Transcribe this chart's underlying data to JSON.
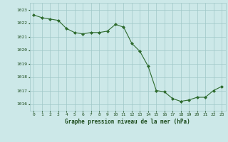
{
  "x": [
    0,
    1,
    2,
    3,
    4,
    5,
    6,
    7,
    8,
    9,
    10,
    11,
    12,
    13,
    14,
    15,
    16,
    17,
    18,
    19,
    20,
    21,
    22,
    23
  ],
  "y": [
    1022.6,
    1022.4,
    1022.3,
    1022.2,
    1021.6,
    1021.3,
    1021.2,
    1021.3,
    1021.3,
    1021.4,
    1021.9,
    1021.7,
    1020.5,
    1019.9,
    1018.8,
    1017.0,
    1016.9,
    1016.4,
    1016.2,
    1016.3,
    1016.5,
    1016.5,
    1017.0,
    1017.3
  ],
  "line_color": "#2d6a2d",
  "marker_color": "#2d6a2d",
  "bg_color": "#cce8e8",
  "grid_color": "#a0c8c8",
  "xlabel": "Graphe pression niveau de la mer (hPa)",
  "xlabel_color": "#1a4a1a",
  "ylabel_ticks": [
    1016,
    1017,
    1018,
    1019,
    1020,
    1021,
    1022,
    1023
  ],
  "xlim": [
    -0.5,
    23.5
  ],
  "ylim": [
    1015.5,
    1023.5
  ],
  "tick_color": "#1a4a1a"
}
